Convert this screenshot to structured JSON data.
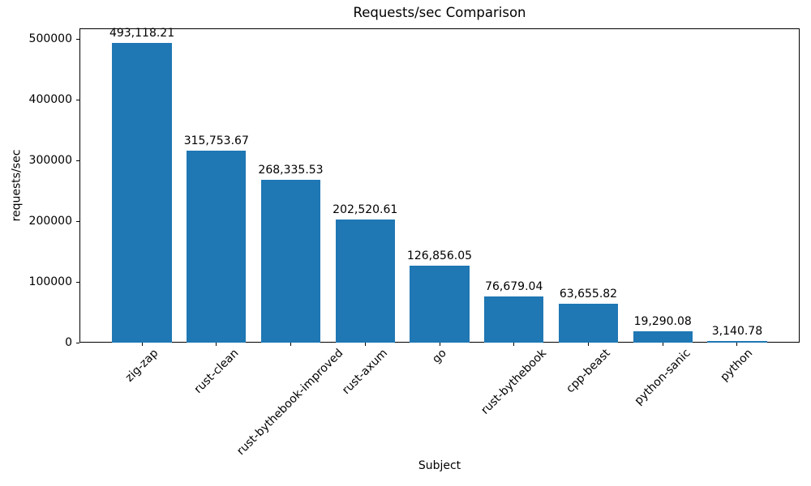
{
  "chart_data": {
    "type": "bar",
    "title": "Requests/sec Comparison",
    "xlabel": "Subject",
    "ylabel": "requests/sec",
    "categories": [
      "zig-zap",
      "rust-clean",
      "rust-bythebook-improved",
      "rust-axum",
      "go",
      "rust-bythebook",
      "cpp-beast",
      "python-sanic",
      "python"
    ],
    "values": [
      493118.21,
      315753.67,
      268335.53,
      202520.61,
      126856.05,
      76679.04,
      63655.82,
      19290.08,
      3140.78
    ],
    "value_labels": [
      "493,118.21",
      "315,753.67",
      "268,335.53",
      "202,520.61",
      "126,856.05",
      "76,679.04",
      "63,655.82",
      "19,290.08",
      "3,140.78"
    ],
    "yticks": [
      0,
      100000,
      200000,
      300000,
      400000,
      500000
    ],
    "ytick_labels": [
      "0",
      "100000",
      "200000",
      "300000",
      "400000",
      "500000"
    ],
    "ylim": [
      0,
      517774
    ],
    "bar_color": "#1f77b4",
    "text_color": "#000000",
    "xtick_rotation_deg": 45,
    "grid": false,
    "legend": "none"
  }
}
